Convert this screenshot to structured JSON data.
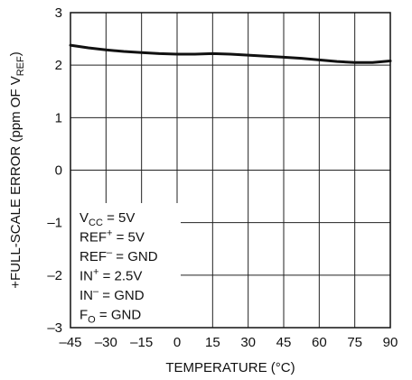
{
  "chart_data": {
    "type": "line",
    "xlabel_main": "TEMPERATURE (",
    "xlabel_unit": "°C",
    "xlabel_end": ")",
    "ylabel_main": "+FULL-SCALE ERROR (ppm OF V",
    "ylabel_sub": "REF",
    "ylabel_end": ")",
    "xlim": [
      -45,
      90
    ],
    "ylim": [
      -3,
      3
    ],
    "grid": true,
    "x_ticks": [
      -45,
      -30,
      -15,
      0,
      15,
      30,
      45,
      60,
      75,
      90
    ],
    "x_tick_labels": [
      "–45",
      "–30",
      "–15",
      "0",
      "15",
      "30",
      "45",
      "60",
      "75",
      "90"
    ],
    "y_ticks": [
      3,
      2,
      1,
      0,
      -1,
      -2,
      -3
    ],
    "y_tick_labels": [
      "3",
      "2",
      "1",
      "0",
      "–1",
      "–2",
      "–3"
    ],
    "series": [
      {
        "x": [
          -45,
          -37.5,
          -30,
          -22.5,
          -15,
          -7.5,
          0,
          7.5,
          15,
          22.5,
          30,
          37.5,
          45,
          52.5,
          60,
          67.5,
          75,
          82.5,
          90
        ],
        "y": [
          2.38,
          2.33,
          2.29,
          2.26,
          2.24,
          2.22,
          2.21,
          2.21,
          2.22,
          2.21,
          2.19,
          2.17,
          2.15,
          2.13,
          2.1,
          2.07,
          2.05,
          2.05,
          2.08
        ]
      }
    ],
    "annotations": [
      {
        "main": "V",
        "sub": "CC",
        "rest": " = 5V"
      },
      {
        "main": "REF",
        "sup": "+",
        "rest": " = 5V"
      },
      {
        "main": "REF",
        "sup": "–",
        "rest": " = GND"
      },
      {
        "main": "IN",
        "sup": "+",
        "rest": " = 2.5V"
      },
      {
        "main": "IN",
        "sup": "–",
        "rest": " = GND"
      },
      {
        "main": "F",
        "sub": "O",
        "rest": " = GND"
      }
    ]
  }
}
